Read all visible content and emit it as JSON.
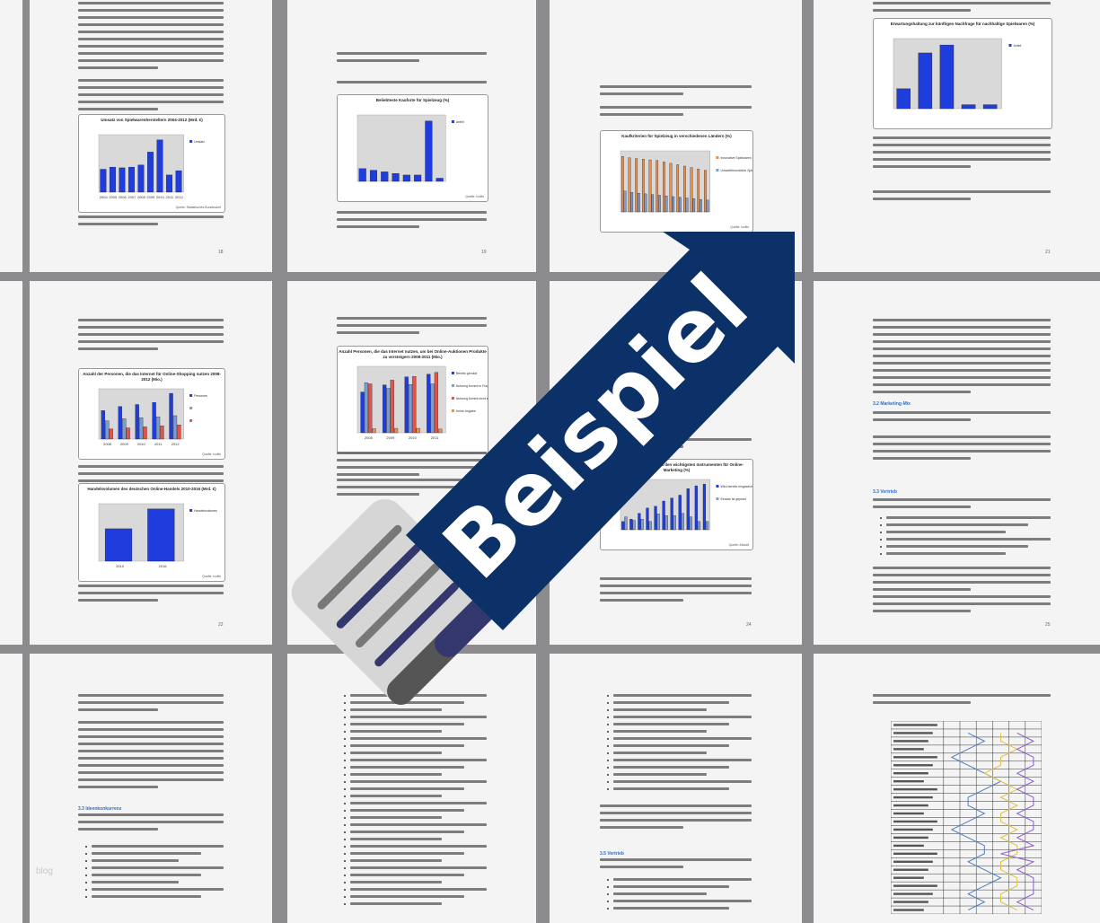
{
  "watermark": "blog",
  "banner": {
    "label": "Beispiel",
    "color": "#0b3168",
    "text_color": "#ffffff"
  },
  "colors": {
    "page": "#f4f4f4",
    "separator": "#8c8c8e",
    "bar_blue": "#1f3ddc",
    "bar_lightblue": "#7e9cc8",
    "bar_red": "#e0554a",
    "bar_orange": "#e8904a"
  },
  "pages": [
    {
      "page_number": "18",
      "chart": {
        "title": "Umsatz von Spielwarenherstellern 2004-2012 (Mrd. €)",
        "categories": [
          "2004",
          "2005",
          "2006",
          "2007",
          "2008",
          "2009",
          "2010",
          "2011",
          "2012"
        ],
        "series": [
          {
            "name": "Umsatz",
            "color": "#1f3ddc",
            "values": [
              3.2,
              3.5,
              3.4,
              3.5,
              3.8,
              5.6,
              7.3,
              2.4,
              3.0
            ]
          }
        ],
        "source": "Quelle: Statistisches Bundesamt"
      }
    },
    {
      "page_number": "19",
      "chart": {
        "title": "Beliebteste Kauforte für Spielzeug (%)",
        "series": [
          {
            "name": "Anteil",
            "color": "#1f3ddc",
            "values": [
              8,
              7,
              6,
              5,
              4,
              4,
              38,
              2
            ]
          }
        ],
        "source": "Quelle: Icollis"
      }
    },
    {
      "page_number": "20",
      "chart": {
        "title": "Kaufkriterien für Spielzeug in verschiedenen Ländern (%)",
        "series": [
          {
            "name": "Innovative Spielwaren",
            "color": "#e8904a",
            "values": [
              80,
              78,
              77,
              76,
              75,
              74,
              72,
              70,
              68,
              66,
              64,
              62,
              60
            ]
          },
          {
            "name": "Umweltfreundliche Spielwaren",
            "color": "#7e9cc8",
            "values": [
              30,
              28,
              27,
              26,
              25,
              24,
              23,
              22,
              21,
              20,
              19,
              18,
              17
            ]
          }
        ],
        "source": "Quelle: Icollis"
      }
    },
    {
      "page_number": "21",
      "chart": {
        "title": "Erwartungshaltung zur künftigen Nachfrage für nachhaltige Spielwaren (%)",
        "series": [
          {
            "name": "Anteil",
            "color": "#1f3ddc",
            "values": [
              15,
              42,
              48,
              3,
              3
            ]
          }
        ]
      }
    },
    {
      "page_number": "22",
      "chart": {
        "title": "Anzahl der Personen, die das Internet für Online-Shopping nutzen 2008-2012 (Mio.)",
        "categories": [
          "2008",
          "2009",
          "2010",
          "2011",
          "2012"
        ],
        "series": [
          {
            "name": "Personen",
            "color": "#1f3ddc",
            "values": [
              28,
              32,
              34,
              36,
              45
            ]
          },
          {
            "name": "",
            "color": "#7e9cc8",
            "values": [
              18,
              20,
              21,
              22,
              23
            ]
          },
          {
            "name": "",
            "color": "#e0554a",
            "values": [
              10,
              11,
              12,
              13,
              14
            ]
          }
        ],
        "source": "Quelle: Icollis"
      },
      "chart2": {
        "title": "Handelsvolumen des deutschen Online-Handels 2010-2016 (Mrd. €)",
        "categories": [
          "2010",
          "2016"
        ],
        "series": [
          {
            "name": "Handelsvolumen",
            "color": "#1f3ddc",
            "values": [
              23.7,
              38.2
            ]
          }
        ],
        "source": "Quelle: Icollis"
      }
    },
    {
      "page_number": "23",
      "chart": {
        "title": "Anzahl Personen, die das Internet nutzen, um bei Online-Auktionen Produkte zu versteigern 2008-2011 (Mio.)",
        "categories": [
          "2008",
          "2009",
          "2010",
          "2011"
        ],
        "series": [
          {
            "name": "Bereits genutzt",
            "color": "#1f3ddc",
            "values": [
              11.0,
              12.9,
              15.1,
              15.8
            ]
          },
          {
            "name": "Nutzung kommt in Frage",
            "color": "#7e9cc8",
            "values": [
              13.5,
              12.0,
              13.0,
              13.2
            ]
          },
          {
            "name": "Nutzung kommt nicht in Frage",
            "color": "#e0554a",
            "values": [
              13.2,
              14.2,
              15.2,
              16.3
            ]
          },
          {
            "name": "Keine Angabe",
            "color": "#e8904a",
            "values": [
              1.1,
              1.2,
              1.2,
              1.0
            ]
          }
        ],
        "source": ""
      }
    },
    {
      "page_number": "24",
      "chart": {
        "title": "Umfrage in Unternehmen zu den wichtigsten Instrumenten für Online-Marketing (%)",
        "series": [
          {
            "name": "Wird bereits eingesetzt",
            "color": "#1f3ddc",
            "values": [
              14,
              18,
              28,
              37,
              40,
              49,
              54,
              59,
              70,
              75,
              78
            ]
          },
          {
            "name": "Einsatz ist geplant",
            "color": "#7e9cc8",
            "values": [
              22,
              16,
              18,
              14,
              27,
              24,
              24,
              28,
              22,
              14,
              14
            ]
          }
        ],
        "source": "Quelle: Absolit"
      }
    },
    {
      "page_number": "25",
      "headings": [
        "3.2 Marketing-Mix",
        "3.3 Vertrieb"
      ]
    },
    {
      "page_number": "",
      "headings": [
        "3.3 Ideenkonkurrenz"
      ]
    },
    {
      "page_number": ""
    },
    {
      "page_number": "",
      "headings": [
        "3.5 Vertrieb"
      ]
    },
    {
      "page_number": ""
    }
  ]
}
